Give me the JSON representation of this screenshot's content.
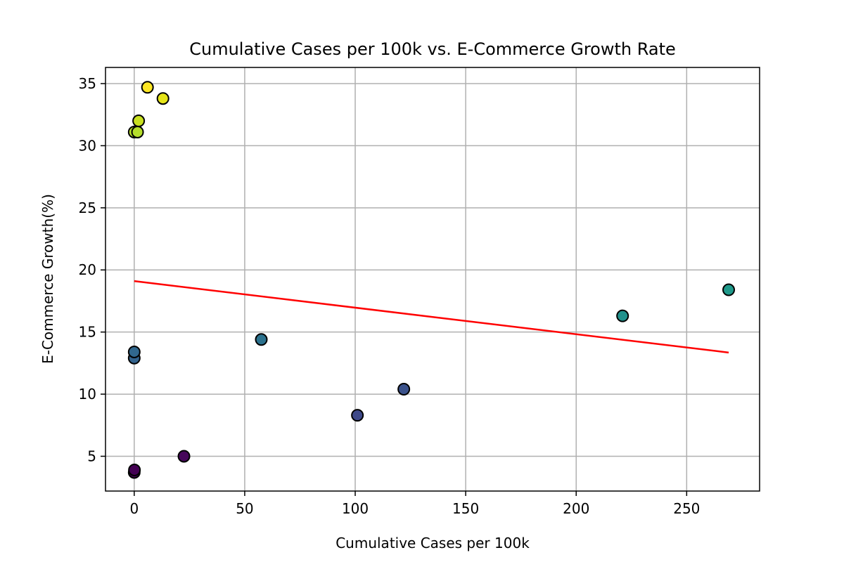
{
  "chart_data": {
    "type": "scatter",
    "title": "Cumulative Cases per 100k vs. E-Commerce Growth Rate",
    "xlabel": "Cumulative Cases per 100k",
    "ylabel": "E-Commerce Growth(%)",
    "xlim": [
      -13,
      283
    ],
    "ylim": [
      2.2,
      36.3
    ],
    "xticks": [
      0,
      50,
      100,
      150,
      200,
      250
    ],
    "yticks": [
      5,
      10,
      15,
      20,
      25,
      30,
      35
    ],
    "grid": true,
    "legend": null,
    "colormap": "viridis",
    "points": [
      {
        "x": 0.0,
        "y": 3.7,
        "color": "#440154"
      },
      {
        "x": 0.1,
        "y": 3.9,
        "color": "#440154"
      },
      {
        "x": 22.5,
        "y": 5.0,
        "color": "#46075a"
      },
      {
        "x": 101.0,
        "y": 8.3,
        "color": "#3e4989"
      },
      {
        "x": 122.0,
        "y": 10.4,
        "color": "#3b528b"
      },
      {
        "x": 0.0,
        "y": 12.9,
        "color": "#33638d"
      },
      {
        "x": 0.0,
        "y": 13.4,
        "color": "#31688e"
      },
      {
        "x": 57.5,
        "y": 14.4,
        "color": "#2c728e"
      },
      {
        "x": 221.0,
        "y": 16.3,
        "color": "#21918c"
      },
      {
        "x": 269.0,
        "y": 18.4,
        "color": "#1f998a"
      },
      {
        "x": 0.0,
        "y": 31.1,
        "color": "#b5de2b"
      },
      {
        "x": 1.5,
        "y": 31.1,
        "color": "#b5de2b"
      },
      {
        "x": 2.0,
        "y": 32.0,
        "color": "#c8e020"
      },
      {
        "x": 6.0,
        "y": 34.7,
        "color": "#fde725"
      },
      {
        "x": 13.0,
        "y": 33.8,
        "color": "#e5e419"
      }
    ],
    "trendline": {
      "color": "#ff0000",
      "points": [
        [
          0,
          19.1
        ],
        [
          269,
          13.35
        ]
      ]
    }
  }
}
